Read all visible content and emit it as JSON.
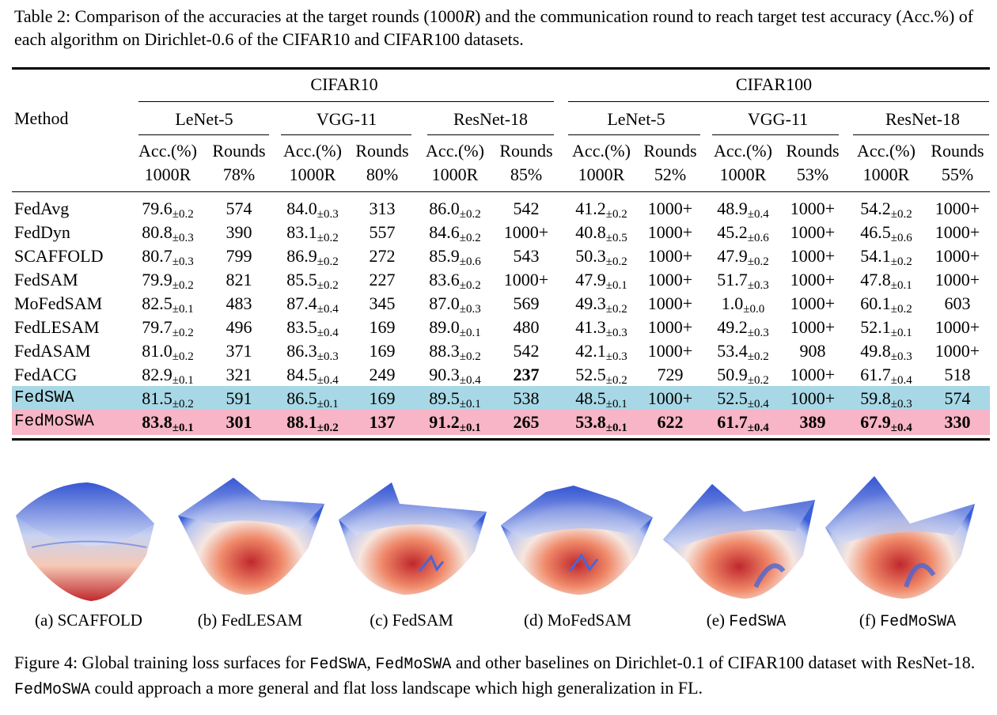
{
  "table_caption": {
    "prefix": "Table 2: Comparison of the accuracies at the target rounds (1000",
    "italic_r": "R",
    "suffix": ") and the communication round to reach target test accuracy (Acc.%) of each algorithm on Dirichlet-0.6 of the CIFAR10 and CIFAR100 datasets."
  },
  "table": {
    "method_header": "Method",
    "datasets": [
      "CIFAR10",
      "CIFAR100"
    ],
    "models": [
      "LeNet-5",
      "VGG-11",
      "ResNet-18",
      "LeNet-5",
      "VGG-11",
      "ResNet-18"
    ],
    "col_headers": [
      {
        "top": "Acc.(%)",
        "bottom": "1000R"
      },
      {
        "top": "Rounds",
        "bottom": "78%"
      },
      {
        "top": "Acc.(%)",
        "bottom": "1000R"
      },
      {
        "top": "Rounds",
        "bottom": "80%"
      },
      {
        "top": "Acc.(%)",
        "bottom": "1000R"
      },
      {
        "top": "Rounds",
        "bottom": "85%"
      },
      {
        "top": "Acc.(%)",
        "bottom": "1000R"
      },
      {
        "top": "Rounds",
        "bottom": "52%"
      },
      {
        "top": "Acc.(%)",
        "bottom": "1000R"
      },
      {
        "top": "Rounds",
        "bottom": "53%"
      },
      {
        "top": "Acc.(%)",
        "bottom": "1000R"
      },
      {
        "top": "Rounds",
        "bottom": "55%"
      }
    ],
    "rows": [
      {
        "method": "FedAvg",
        "cells": [
          [
            "79.6",
            "±0.2"
          ],
          [
            "574"
          ],
          [
            "84.0",
            "±0.3"
          ],
          [
            "313"
          ],
          [
            "86.0",
            "±0.2"
          ],
          [
            "542"
          ],
          [
            "41.2",
            "±0.2"
          ],
          [
            "1000+"
          ],
          [
            "48.9",
            "±0.4"
          ],
          [
            "1000+"
          ],
          [
            "54.2",
            "±0.2"
          ],
          [
            "1000+"
          ]
        ]
      },
      {
        "method": "FedDyn",
        "cells": [
          [
            "80.8",
            "±0.3"
          ],
          [
            "390"
          ],
          [
            "83.1",
            "±0.2"
          ],
          [
            "557"
          ],
          [
            "84.6",
            "±0.2"
          ],
          [
            "1000+"
          ],
          [
            "40.8",
            "±0.5"
          ],
          [
            "1000+"
          ],
          [
            "45.2",
            "±0.6"
          ],
          [
            "1000+"
          ],
          [
            "46.5",
            "±0.6"
          ],
          [
            "1000+"
          ]
        ]
      },
      {
        "method": "SCAFFOLD",
        "cells": [
          [
            "80.7",
            "±0.3"
          ],
          [
            "799"
          ],
          [
            "86.9",
            "±0.2"
          ],
          [
            "272"
          ],
          [
            "85.9",
            "±0.6"
          ],
          [
            "543"
          ],
          [
            "50.3",
            "±0.2"
          ],
          [
            "1000+"
          ],
          [
            "47.9",
            "±0.2"
          ],
          [
            "1000+"
          ],
          [
            "54.1",
            "±0.2"
          ],
          [
            "1000+"
          ]
        ]
      },
      {
        "method": "FedSAM",
        "cells": [
          [
            "79.9",
            "±0.2"
          ],
          [
            "821"
          ],
          [
            "85.5",
            "±0.2"
          ],
          [
            "227"
          ],
          [
            "83.6",
            "±0.2"
          ],
          [
            "1000+"
          ],
          [
            "47.9",
            "±0.1"
          ],
          [
            "1000+"
          ],
          [
            "51.7",
            "±0.3"
          ],
          [
            "1000+"
          ],
          [
            "47.8",
            "±0.1"
          ],
          [
            "1000+"
          ]
        ]
      },
      {
        "method": "MoFedSAM",
        "cells": [
          [
            "82.5",
            "±0.1"
          ],
          [
            "483"
          ],
          [
            "87.4",
            "±0.4"
          ],
          [
            "345"
          ],
          [
            "87.0",
            "±0.3"
          ],
          [
            "569"
          ],
          [
            "49.3",
            "±0.2"
          ],
          [
            "1000+"
          ],
          [
            "1.0",
            "±0.0"
          ],
          [
            "1000+"
          ],
          [
            "60.1",
            "±0.2"
          ],
          [
            "603"
          ]
        ]
      },
      {
        "method": "FedLESAM",
        "cells": [
          [
            "79.7",
            "±0.2"
          ],
          [
            "496"
          ],
          [
            "83.5",
            "±0.4"
          ],
          [
            "169"
          ],
          [
            "89.0",
            "±0.1"
          ],
          [
            "480"
          ],
          [
            "41.3",
            "±0.3"
          ],
          [
            "1000+"
          ],
          [
            "49.2",
            "±0.3"
          ],
          [
            "1000+"
          ],
          [
            "52.1",
            "±0.1"
          ],
          [
            "1000+"
          ]
        ]
      },
      {
        "method": "FedASAM",
        "cells": [
          [
            "81.0",
            "±0.2"
          ],
          [
            "371"
          ],
          [
            "86.3",
            "±0.3"
          ],
          [
            "169"
          ],
          [
            "88.3",
            "±0.2"
          ],
          [
            "542"
          ],
          [
            "42.1",
            "±0.3"
          ],
          [
            "1000+"
          ],
          [
            "53.4",
            "±0.2"
          ],
          [
            "908"
          ],
          [
            "49.8",
            "±0.3"
          ],
          [
            "1000+"
          ]
        ]
      },
      {
        "method": "FedACG",
        "cells": [
          [
            "82.9",
            "±0.1"
          ],
          [
            "321"
          ],
          [
            "84.5",
            "±0.4"
          ],
          [
            "249"
          ],
          [
            "90.3",
            "±0.4"
          ],
          [
            "237"
          ],
          [
            "52.5",
            "±0.2"
          ],
          [
            "729"
          ],
          [
            "50.9",
            "±0.2"
          ],
          [
            "1000+"
          ],
          [
            "61.7",
            "±0.4"
          ],
          [
            "518"
          ]
        ]
      },
      {
        "method": "FedSWA",
        "cells": [
          [
            "81.5",
            "±0.2"
          ],
          [
            "591"
          ],
          [
            "86.5",
            "±0.1"
          ],
          [
            "169"
          ],
          [
            "89.5",
            "±0.1"
          ],
          [
            "538"
          ],
          [
            "48.5",
            "±0.1"
          ],
          [
            "1000+"
          ],
          [
            "52.5",
            "±0.4"
          ],
          [
            "1000+"
          ],
          [
            "59.8",
            "±0.3"
          ],
          [
            "574"
          ]
        ]
      },
      {
        "method": "FedMoSWA",
        "cells": [
          [
            "83.8",
            "±0.1"
          ],
          [
            "301"
          ],
          [
            "88.1",
            "±0.2"
          ],
          [
            "137"
          ],
          [
            "91.2",
            "±0.1"
          ],
          [
            "265"
          ],
          [
            "53.8",
            "±0.1"
          ],
          [
            "622"
          ],
          [
            "61.7",
            "±0.4"
          ],
          [
            "389"
          ],
          [
            "67.9",
            "±0.4"
          ],
          [
            "330"
          ]
        ]
      }
    ]
  },
  "figure": {
    "sublabels": [
      "(a) SCAFFOLD",
      "(b) FedLESAM",
      "(c) FedSAM",
      "(d) MoFedSAM",
      "(e) ",
      "(f) "
    ],
    "sublabel_mono": [
      "",
      "",
      "",
      "",
      "FedSWA",
      "FedMoSWA"
    ],
    "caption_parts": {
      "p1": "Figure 4: Global training loss surfaces for ",
      "m1": "FedSWA",
      "p2": ", ",
      "m2": "FedMoSWA",
      "p3": " and other baselines on Dirichlet-0.1 of CIFAR100 dataset with ResNet-18. ",
      "m3": "FedMoSWA",
      "p4": " could approach a more general and flat loss landscape which high generalization in FL."
    },
    "colors": {
      "high": "#3b5fd9",
      "mid": "#f2efee",
      "low": "#c0282d"
    }
  }
}
